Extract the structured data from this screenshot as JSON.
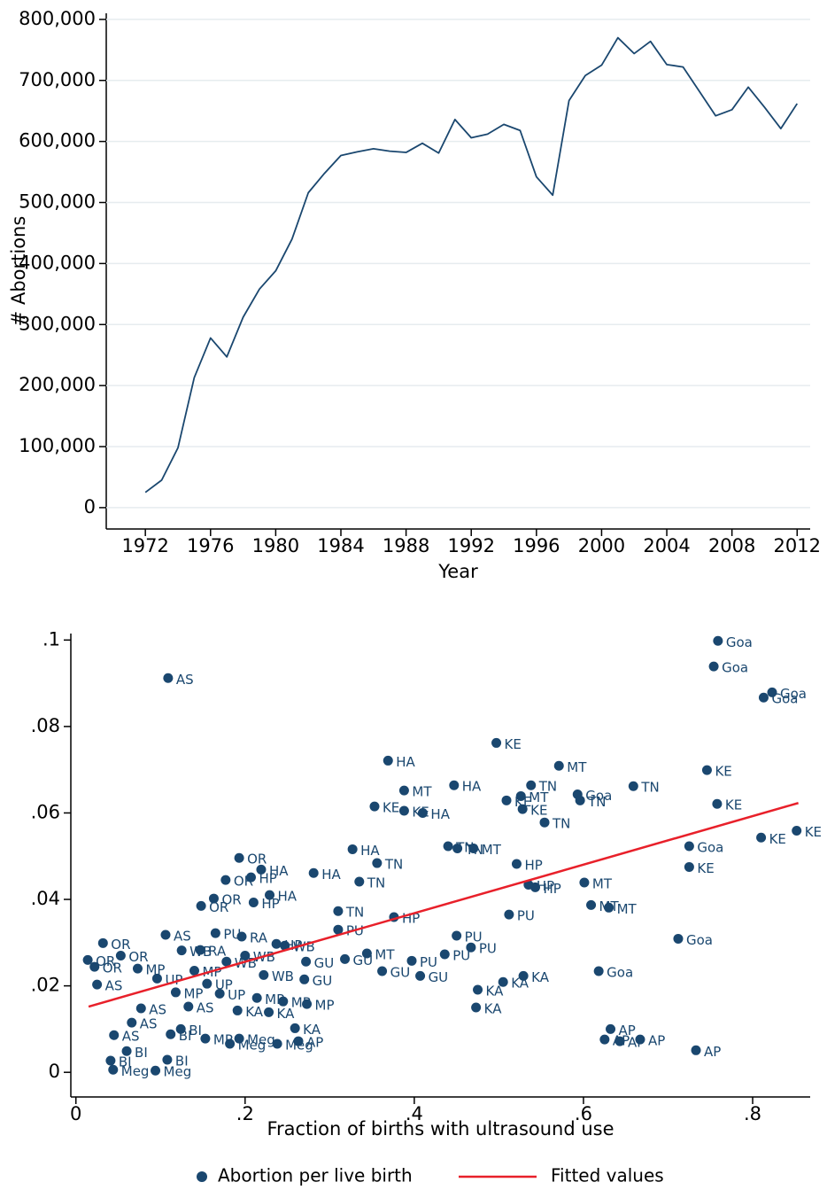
{
  "chart_data": [
    {
      "type": "line",
      "xlabel": "Year",
      "ylabel": "# Abortions",
      "x": [
        1972,
        1973,
        1974,
        1975,
        1976,
        1977,
        1978,
        1979,
        1980,
        1981,
        1982,
        1983,
        1984,
        1985,
        1986,
        1987,
        1988,
        1989,
        1990,
        1991,
        1992,
        1993,
        1994,
        1995,
        1996,
        1997,
        1998,
        1999,
        2000,
        2001,
        2002,
        2003,
        2004,
        2005,
        2006,
        2007,
        2008,
        2009,
        2010,
        2011,
        2012
      ],
      "series": [
        {
          "color": "#1a476f",
          "values": [
            25000,
            45000,
            98000,
            213000,
            278000,
            247000,
            312000,
            358000,
            388000,
            440000,
            516000,
            548000,
            577000,
            583000,
            588000,
            584000,
            582000,
            597000,
            581000,
            636000,
            606000,
            612000,
            628000,
            618000,
            542000,
            512000,
            667000,
            708000,
            725000,
            770000,
            744000,
            764000,
            726000,
            722000,
            682000,
            642000,
            652000,
            689000,
            656000,
            621000,
            662000
          ]
        }
      ],
      "xlim": [
        1969.6,
        2012.8
      ],
      "ylim": [
        -35000,
        810000
      ],
      "xticks": [
        1972,
        1976,
        1980,
        1984,
        1988,
        1992,
        1996,
        2000,
        2004,
        2008,
        2012
      ],
      "yticks": [
        0,
        {
          "value": 100000,
          "label": "100,000"
        },
        {
          "value": 200000,
          "label": "200,000"
        },
        {
          "value": 300000,
          "label": "300,000"
        },
        {
          "value": 400000,
          "label": "400,000"
        },
        {
          "value": 500000,
          "label": "500,000"
        },
        {
          "value": 600000,
          "label": "600,000"
        },
        {
          "value": 700000,
          "label": "700,000"
        },
        {
          "value": 800000,
          "label": "800,000"
        }
      ],
      "grid": true
    },
    {
      "type": "scatter",
      "xlabel": "Fraction of births with ultrasound use",
      "series": [
        {
          "name": "Abortion per live birth",
          "type": "scatter",
          "color": "#1a476f",
          "x": [
            0.109,
            0.759,
            0.754,
            0.823,
            0.813,
            0.497,
            0.369,
            0.571,
            0.746,
            0.447,
            0.388,
            0.659,
            0.538,
            0.593,
            0.596,
            0.526,
            0.758,
            0.353,
            0.388,
            0.41,
            0.528,
            0.554,
            0.509,
            0.852,
            0.81,
            0.725,
            0.327,
            0.44,
            0.451,
            0.47,
            0.521,
            0.356,
            0.725,
            0.281,
            0.335,
            0.601,
            0.535,
            0.543,
            0.193,
            0.219,
            0.609,
            0.63,
            0.31,
            0.376,
            0.512,
            0.31,
            0.712,
            0.45,
            0.467,
            0.436,
            0.397,
            0.362,
            0.407,
            0.618,
            0.529,
            0.505,
            0.475,
            0.473,
            0.344,
            0.318,
            0.632,
            0.625,
            0.643,
            0.667,
            0.733,
            0.106,
            0.148,
            0.163,
            0.207,
            0.177,
            0.229,
            0.21,
            0.165,
            0.196,
            0.247,
            0.178,
            0.272,
            0.222,
            0.27,
            0.032,
            0.014,
            0.022,
            0.025,
            0.053,
            0.073,
            0.096,
            0.214,
            0.245,
            0.273,
            0.259,
            0.133,
            0.077,
            0.066,
            0.045,
            0.124,
            0.112,
            0.06,
            0.041,
            0.108,
            0.044,
            0.094,
            0.193,
            0.238,
            0.263,
            0.191,
            0.228,
            0.17,
            0.153,
            0.182,
            0.147,
            0.237,
            0.125,
            0.14,
            0.2,
            0.155,
            0.118
          ],
          "values": [
            0.0912,
            0.0998,
            0.0939,
            0.0879,
            0.0867,
            0.0762,
            0.0721,
            0.0709,
            0.0699,
            0.0664,
            0.0652,
            0.0662,
            0.0664,
            0.0643,
            0.0629,
            0.0639,
            0.0621,
            0.0615,
            0.0605,
            0.06,
            0.0609,
            0.0578,
            0.0629,
            0.0559,
            0.0543,
            0.0523,
            0.0516,
            0.0523,
            0.0518,
            0.0518,
            0.0482,
            0.0484,
            0.0475,
            0.0461,
            0.0441,
            0.0439,
            0.0434,
            0.0428,
            0.0496,
            0.0469,
            0.0387,
            0.0381,
            0.0373,
            0.0359,
            0.0365,
            0.033,
            0.0309,
            0.0316,
            0.0289,
            0.0273,
            0.0258,
            0.0234,
            0.0223,
            0.0234,
            0.0223,
            0.0209,
            0.0191,
            0.015,
            0.0275,
            0.0262,
            0.01,
            0.0076,
            0.0072,
            0.0076,
            0.0051,
            0.0318,
            0.0385,
            0.0402,
            0.0451,
            0.0445,
            0.041,
            0.0393,
            0.0322,
            0.0314,
            0.0293,
            0.0256,
            0.0256,
            0.0225,
            0.0215,
            0.0299,
            0.026,
            0.0244,
            0.0203,
            0.027,
            0.024,
            0.0217,
            0.0172,
            0.0164,
            0.0158,
            0.0102,
            0.0152,
            0.0148,
            0.0115,
            0.0086,
            0.01,
            0.0088,
            0.0049,
            0.0027,
            0.0029,
            0.0006,
            0.0004,
            0.0078,
            0.0066,
            0.0072,
            0.0143,
            0.0139,
            0.0182,
            0.0078,
            0.0066,
            0.0283,
            0.0297,
            0.0282,
            0.0235,
            0.027,
            0.0205,
            0.0185
          ],
          "point_labels": [
            "AS",
            "Goa",
            "Goa",
            "Goa",
            "Goa",
            "KE",
            "HA",
            "MT",
            "KE",
            "HA",
            "MT",
            "TN",
            "TN",
            "Goa",
            "TN",
            "MT",
            "KE",
            "KE",
            "KE",
            "HA",
            "KE",
            "TN",
            "KE",
            "KE",
            "KE",
            "Goa",
            "HA",
            "TN",
            "TN",
            "MT",
            "HP",
            "TN",
            "KE",
            "HA",
            "TN",
            "MT",
            "HP",
            "HP",
            "OR",
            "HA",
            "MT",
            "MT",
            "TN",
            "HP",
            "PU",
            "PU",
            "Goa",
            "PU",
            "PU",
            "PU",
            "PU",
            "GU",
            "GU",
            "Goa",
            "KA",
            "KA",
            "KA",
            "KA",
            "MT",
            "GU",
            "AP",
            "AP",
            "AP",
            "AP",
            "AP",
            "AS",
            "OR",
            "OR",
            "HP",
            "OR",
            "HA",
            "HP",
            "PU",
            "RA",
            "WB",
            "WB",
            "GU",
            "WB",
            "GU",
            "OR",
            "OR",
            "OR",
            "AS",
            "OR",
            "MP",
            "UP",
            "MP",
            "MP",
            "MP",
            "KA",
            "AS",
            "AS",
            "AS",
            "AS",
            "BI",
            "BI",
            "BI",
            "BI",
            "BI",
            "Meg",
            "Meg",
            "Meg",
            "Meg",
            "AP",
            "KA",
            "KA",
            "UP",
            "MP",
            "Meg",
            "RA",
            "HP",
            "WB",
            "MP",
            "WB",
            "UP",
            "MP"
          ]
        },
        {
          "name": "Fitted values",
          "type": "line",
          "color": "#e8202a",
          "x": [
            0.015,
            0.854
          ],
          "values": [
            0.0152,
            0.0623
          ]
        }
      ],
      "xlim": [
        -0.006,
        0.868
      ],
      "ylim": [
        -0.0057,
        0.1015
      ],
      "xticks": [
        0,
        {
          "value": 0.2,
          "label": ".2"
        },
        {
          "value": 0.4,
          "label": ".4"
        },
        {
          "value": 0.6,
          "label": ".6"
        },
        {
          "value": 0.8,
          "label": ".8"
        }
      ],
      "yticks": [
        0,
        {
          "value": 0.02,
          "label": ".02"
        },
        {
          "value": 0.04,
          "label": ".04"
        },
        {
          "value": 0.06,
          "label": ".06"
        },
        {
          "value": 0.08,
          "label": ".08"
        },
        {
          "value": 0.1,
          "label": ".1"
        }
      ],
      "grid": false,
      "legend": "bottom"
    }
  ]
}
